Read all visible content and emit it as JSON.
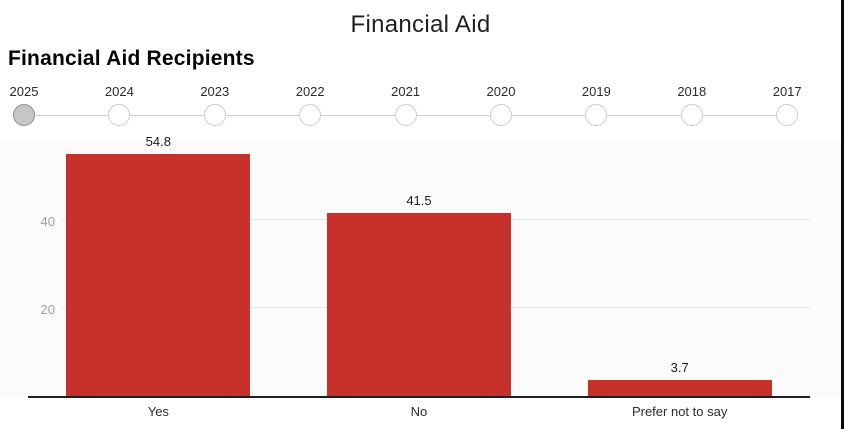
{
  "header": {
    "title": "Financial Aid",
    "subtitle": "Financial Aid Recipients"
  },
  "timeline": {
    "years": [
      "2025",
      "2024",
      "2023",
      "2022",
      "2021",
      "2020",
      "2019",
      "2018",
      "2017"
    ],
    "selected": "2025"
  },
  "chart_data": {
    "type": "bar",
    "title": "Financial Aid Recipients",
    "categories": [
      "Yes",
      "No",
      "Prefer not to say"
    ],
    "values": [
      54.8,
      41.5,
      3.7
    ],
    "value_labels": [
      "54.8",
      "41.5",
      "3.7"
    ],
    "xlabel": "",
    "ylabel": "",
    "ylim": [
      0,
      58.5
    ],
    "yticks": [
      20,
      40
    ],
    "grid": true,
    "legend": "none",
    "bar_color": "#c6312b"
  },
  "colors": {
    "bar": "#c6312b",
    "axis_line": "#1f1f1f",
    "gridline": "#e4e4e4",
    "tick_text": "#9e9e9e",
    "selected_stop_fill": "#c6c6c6",
    "right_border": "#0a0a0a"
  }
}
